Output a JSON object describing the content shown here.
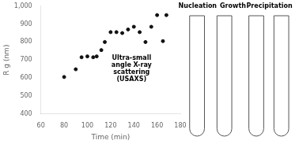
{
  "chart_data": {
    "type": "scatter",
    "x": [
      80,
      90,
      95,
      100,
      105,
      108,
      112,
      115,
      120,
      125,
      130,
      135,
      140,
      145,
      150,
      155,
      160,
      165,
      168
    ],
    "values": [
      605,
      648,
      715,
      720,
      715,
      720,
      755,
      800,
      855,
      855,
      850,
      870,
      885,
      855,
      800,
      885,
      950,
      805,
      950
    ],
    "color": "#111111",
    "x_label": "Time (min)",
    "y_label": "R g (nm)",
    "xlim": [
      60,
      180
    ],
    "xticks": [
      60,
      80,
      100,
      120,
      140,
      160,
      180
    ],
    "ylim": [
      400,
      1000
    ],
    "yticks": [
      400,
      500,
      600,
      700,
      800,
      900,
      1000
    ],
    "grid": false,
    "annotations": [
      {
        "text": "Ultra-small\nangle X-ray\nscattering\n(USAXS)",
        "x": 138,
        "y": 650
      },
      {
        "text": "Nucleation"
      },
      {
        "text": "Growth"
      },
      {
        "text": "Precipitation"
      }
    ]
  }
}
